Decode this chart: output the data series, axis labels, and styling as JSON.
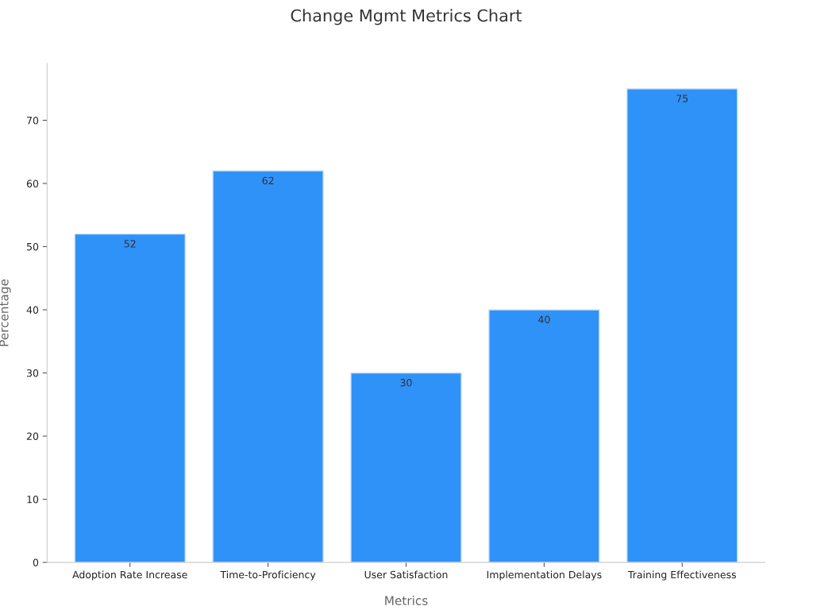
{
  "chart_data": {
    "type": "bar",
    "title": "Change Mgmt Metrics Chart",
    "xlabel": "Metrics",
    "ylabel": "Percentage",
    "categories": [
      "Adoption Rate Increase",
      "Time-to-Proficiency",
      "User Satisfaction",
      "Implementation Delays",
      "Training Effectiveness"
    ],
    "values": [
      52,
      62,
      30,
      40,
      75
    ],
    "color": "#2f92f8",
    "ylim": [
      0,
      79
    ],
    "yticks": [
      0,
      10,
      20,
      30,
      40,
      50,
      60,
      70
    ],
    "data_labels": true,
    "grid": false,
    "legend": false
  }
}
